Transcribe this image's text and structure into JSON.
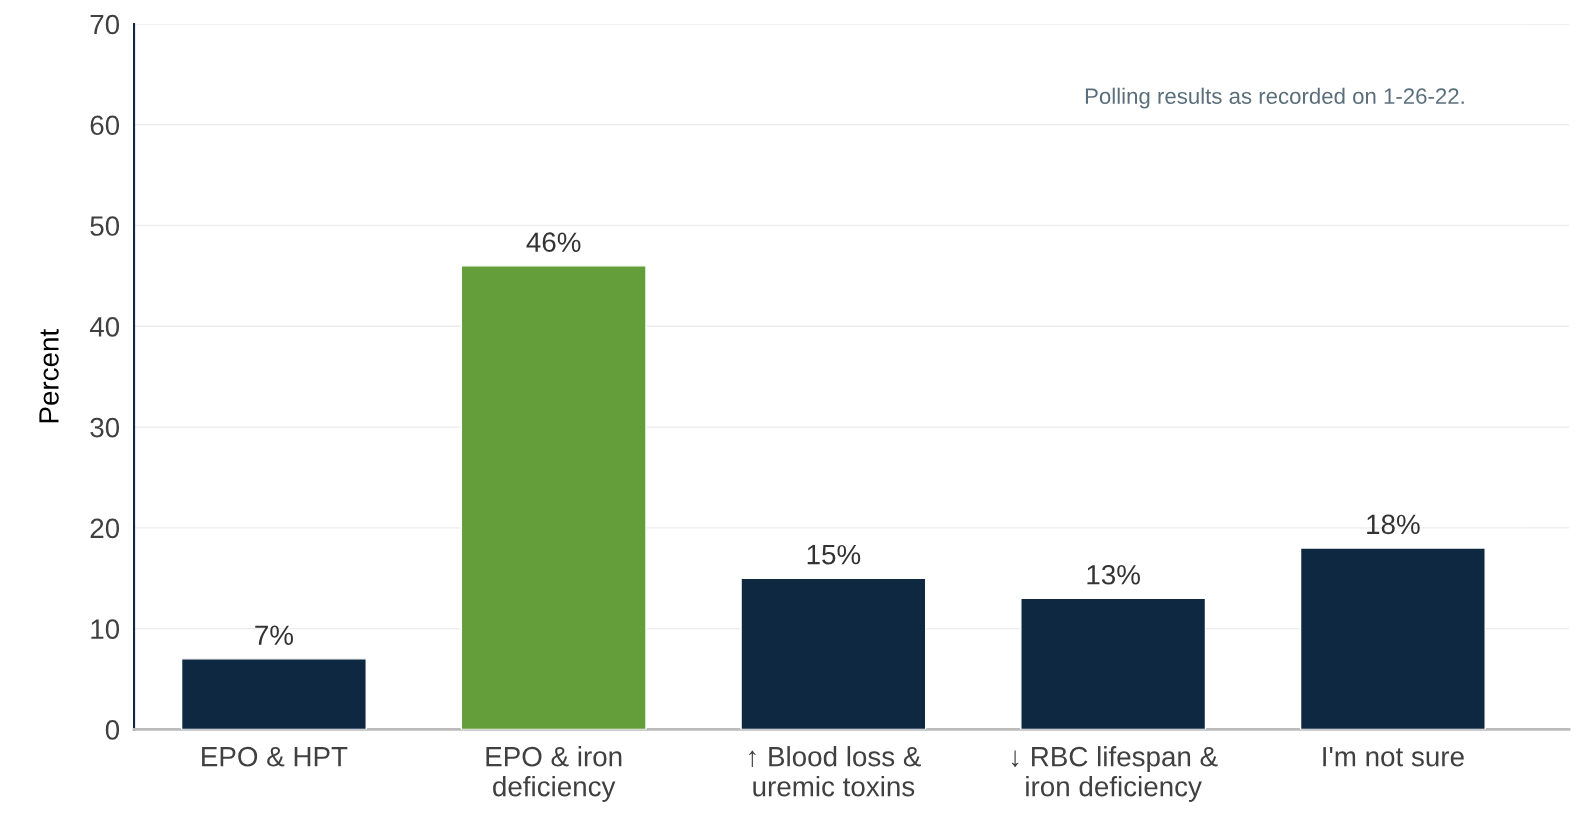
{
  "chart_data": {
    "type": "bar",
    "ylabel": "Percent",
    "categories": [
      "EPO & HPT",
      "EPO & iron\ndeficiency",
      "↑ Blood loss &\nuremic toxins",
      "↓ RBC lifespan &\niron deficiency",
      "I'm not sure"
    ],
    "values": [
      7,
      46,
      15,
      13,
      18
    ],
    "colors": [
      "#0d2840",
      "#639e3a",
      "#0d2840",
      "#0d2840",
      "#0d2840"
    ],
    "value_labels": [
      "7%",
      "46%",
      "15%",
      "13%",
      "18%"
    ],
    "ylim": [
      0,
      70
    ],
    "yticks": [
      0,
      10,
      20,
      30,
      40,
      50,
      60,
      70
    ],
    "grid": "y",
    "annotations": [
      "Polling results as recorded on 1-26-22."
    ]
  }
}
